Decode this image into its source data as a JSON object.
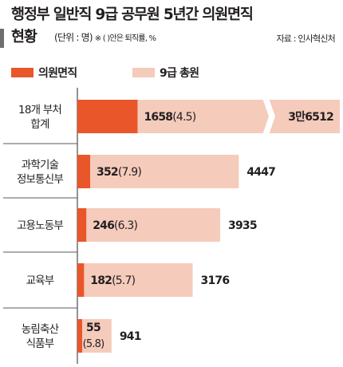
{
  "header": {
    "title_line1": "행정부 일반직 9급 공무원 5년간 의원면직",
    "title_line2": "현황",
    "unit_note": "(단위 : 명)",
    "ratio_note": "※ (  )안은 퇴직률, %",
    "source": "자료 : 인사혁신처"
  },
  "colors": {
    "resign": "#e9562a",
    "total": "#f5cbbb",
    "axis": "#58595b",
    "text": "#231f20"
  },
  "chart_data": {
    "type": "bar",
    "orientation": "horizontal",
    "stacked": "overlay",
    "axis_break": "3만6512 bar is truncated",
    "categories": [
      "18개 부처 합계",
      "과학기술 정보통신부",
      "고용노동부",
      "교육부",
      "농림축산 식품부"
    ],
    "category_lines": [
      [
        "18개 부처",
        "합계"
      ],
      [
        "과학기술",
        "정보통신부"
      ],
      [
        "고용노동부"
      ],
      [
        "교육부"
      ],
      [
        "농림축산",
        "식품부"
      ]
    ],
    "series": [
      {
        "name": "의원면직",
        "values": [
          1658,
          352,
          246,
          182,
          55
        ],
        "labels": [
          "1658(4.5)",
          "352(7.9)",
          "246(6.3)",
          "182(5.7)",
          "55(5.8)"
        ],
        "rates": [
          4.5,
          7.9,
          6.3,
          5.7,
          5.8
        ]
      },
      {
        "name": "9급 총원",
        "values": [
          36512,
          4447,
          3935,
          3176,
          941
        ],
        "labels": [
          "3만6512",
          "4447",
          "3935",
          "3176",
          "941"
        ]
      }
    ]
  }
}
